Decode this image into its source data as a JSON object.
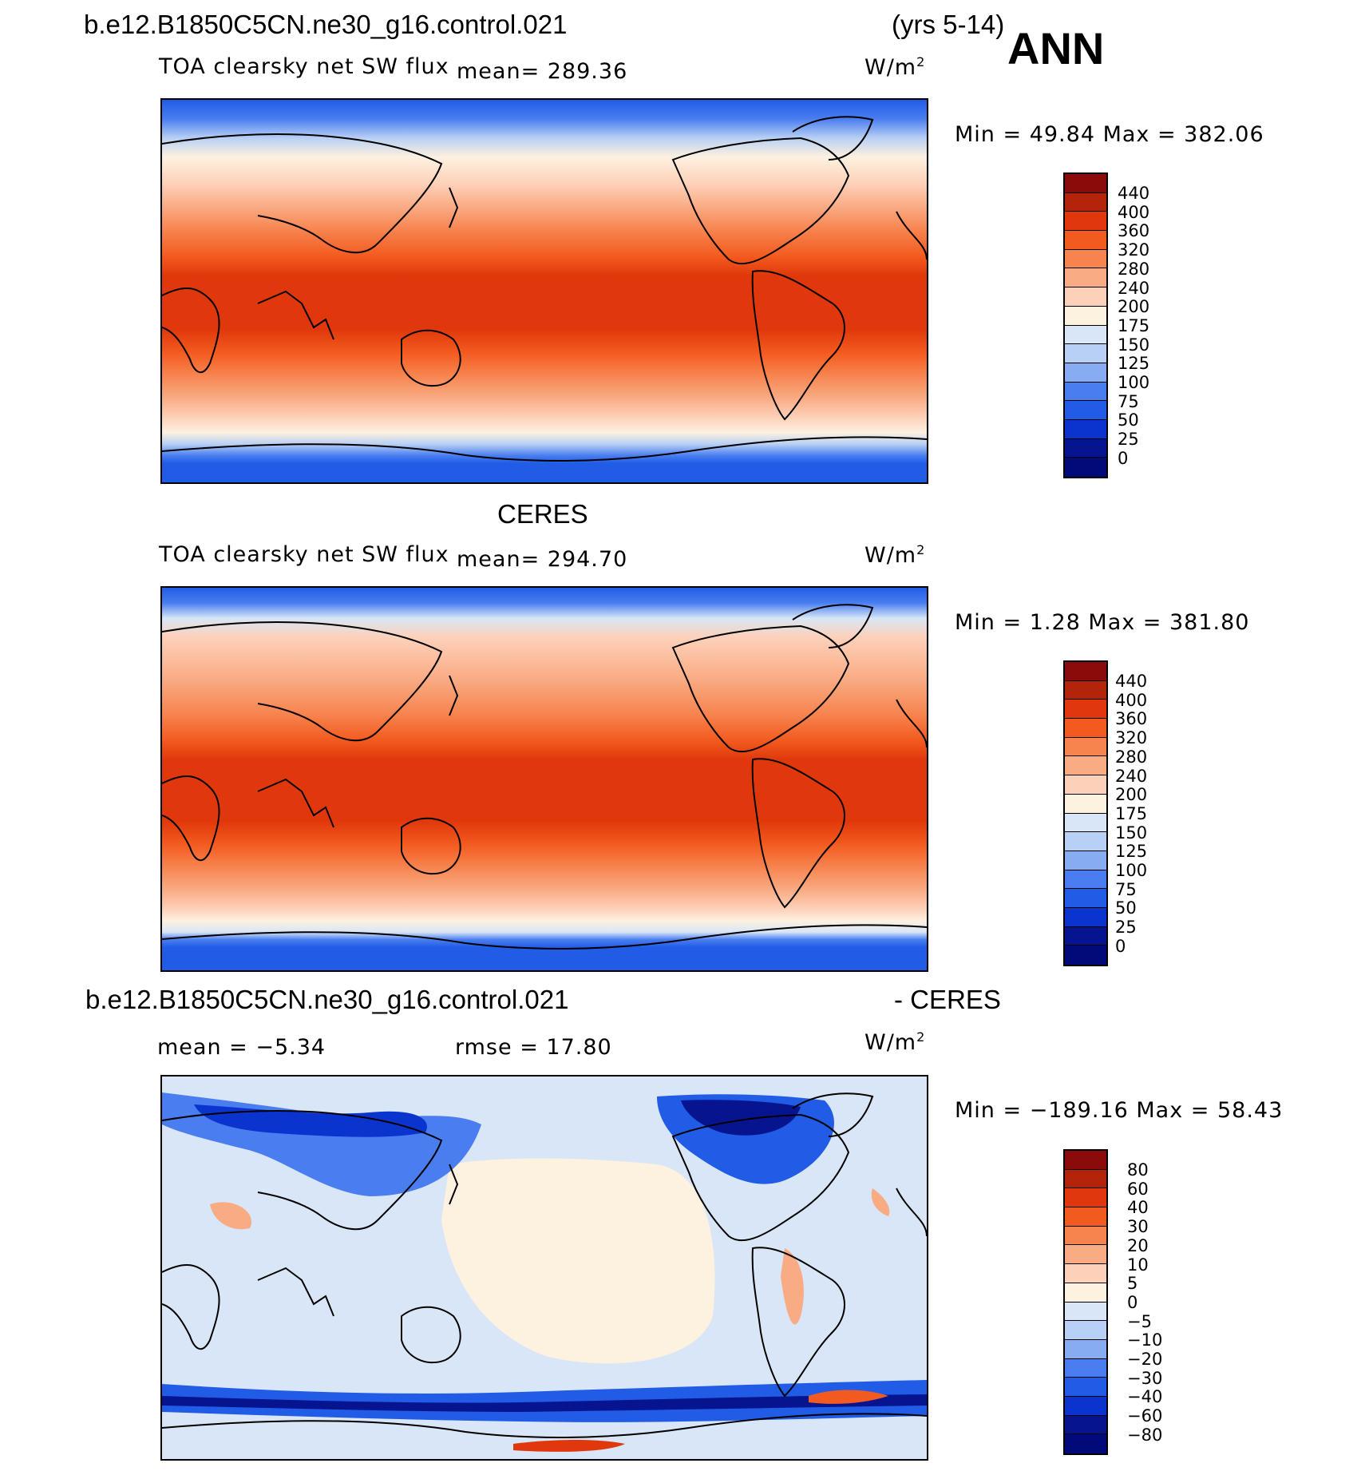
{
  "header": {
    "case_name": "b.e12.B1850C5CN.ne30_g16.control.021",
    "years": "(yrs 5-14)",
    "season": "ANN"
  },
  "panels": [
    {
      "id": "model",
      "variable": "TOA clearsky net SW flux",
      "mean_text": "mean= 289.36",
      "units_base": "W/m",
      "units_exp": "2",
      "minmax_text": "Min =   49.84 Max = 382.06",
      "colorbar": {
        "labels": [
          "440",
          "400",
          "360",
          "320",
          "280",
          "240",
          "200",
          "175",
          "150",
          "125",
          "100",
          "75",
          "50",
          "25",
          "0"
        ],
        "colors": [
          "#8b0a0a",
          "#b3240a",
          "#e0380c",
          "#f35a1f",
          "#f7844f",
          "#f9ab84",
          "#fdd1b9",
          "#fdf1e0",
          "#d8e6f7",
          "#b8d0f4",
          "#87acf1",
          "#4a7ef0",
          "#215ce6",
          "#0b34cf",
          "#06148f",
          "#000a78"
        ]
      }
    },
    {
      "id": "obs",
      "title": "CERES",
      "variable": "TOA clearsky net SW flux",
      "mean_text": "mean= 294.70",
      "units_base": "W/m",
      "units_exp": "2",
      "minmax_text": "Min =    1.28 Max = 381.80",
      "colorbar": {
        "labels": [
          "440",
          "400",
          "360",
          "320",
          "280",
          "240",
          "200",
          "175",
          "150",
          "125",
          "100",
          "75",
          "50",
          "25",
          "0"
        ],
        "colors": [
          "#8b0a0a",
          "#b3240a",
          "#e0380c",
          "#f35a1f",
          "#f7844f",
          "#f9ab84",
          "#fdd1b9",
          "#fdf1e0",
          "#d8e6f7",
          "#b8d0f4",
          "#87acf1",
          "#4a7ef0",
          "#215ce6",
          "#0b34cf",
          "#06148f",
          "#000a78"
        ]
      }
    },
    {
      "id": "diff",
      "title_left": "b.e12.B1850C5CN.ne30_g16.control.021",
      "title_right": "- CERES",
      "mean_text": "mean =   −5.34",
      "rmse_text": "rmse =   17.80",
      "units_base": "W/m",
      "units_exp": "2",
      "minmax_text": "Min = −189.16 Max =   58.43",
      "colorbar": {
        "labels": [
          "80",
          "60",
          "40",
          "30",
          "20",
          "10",
          "5",
          "0",
          "−5",
          "−10",
          "−20",
          "−30",
          "−40",
          "−60",
          "−80"
        ],
        "colors": [
          "#8b0a0a",
          "#b3240a",
          "#e0380c",
          "#f35a1f",
          "#f7844f",
          "#f9ab84",
          "#fdd1b9",
          "#fdf1e0",
          "#d8e6f7",
          "#b8d0f4",
          "#87acf1",
          "#4a7ef0",
          "#215ce6",
          "#0b34cf",
          "#06148f",
          "#000a78"
        ]
      }
    }
  ]
}
